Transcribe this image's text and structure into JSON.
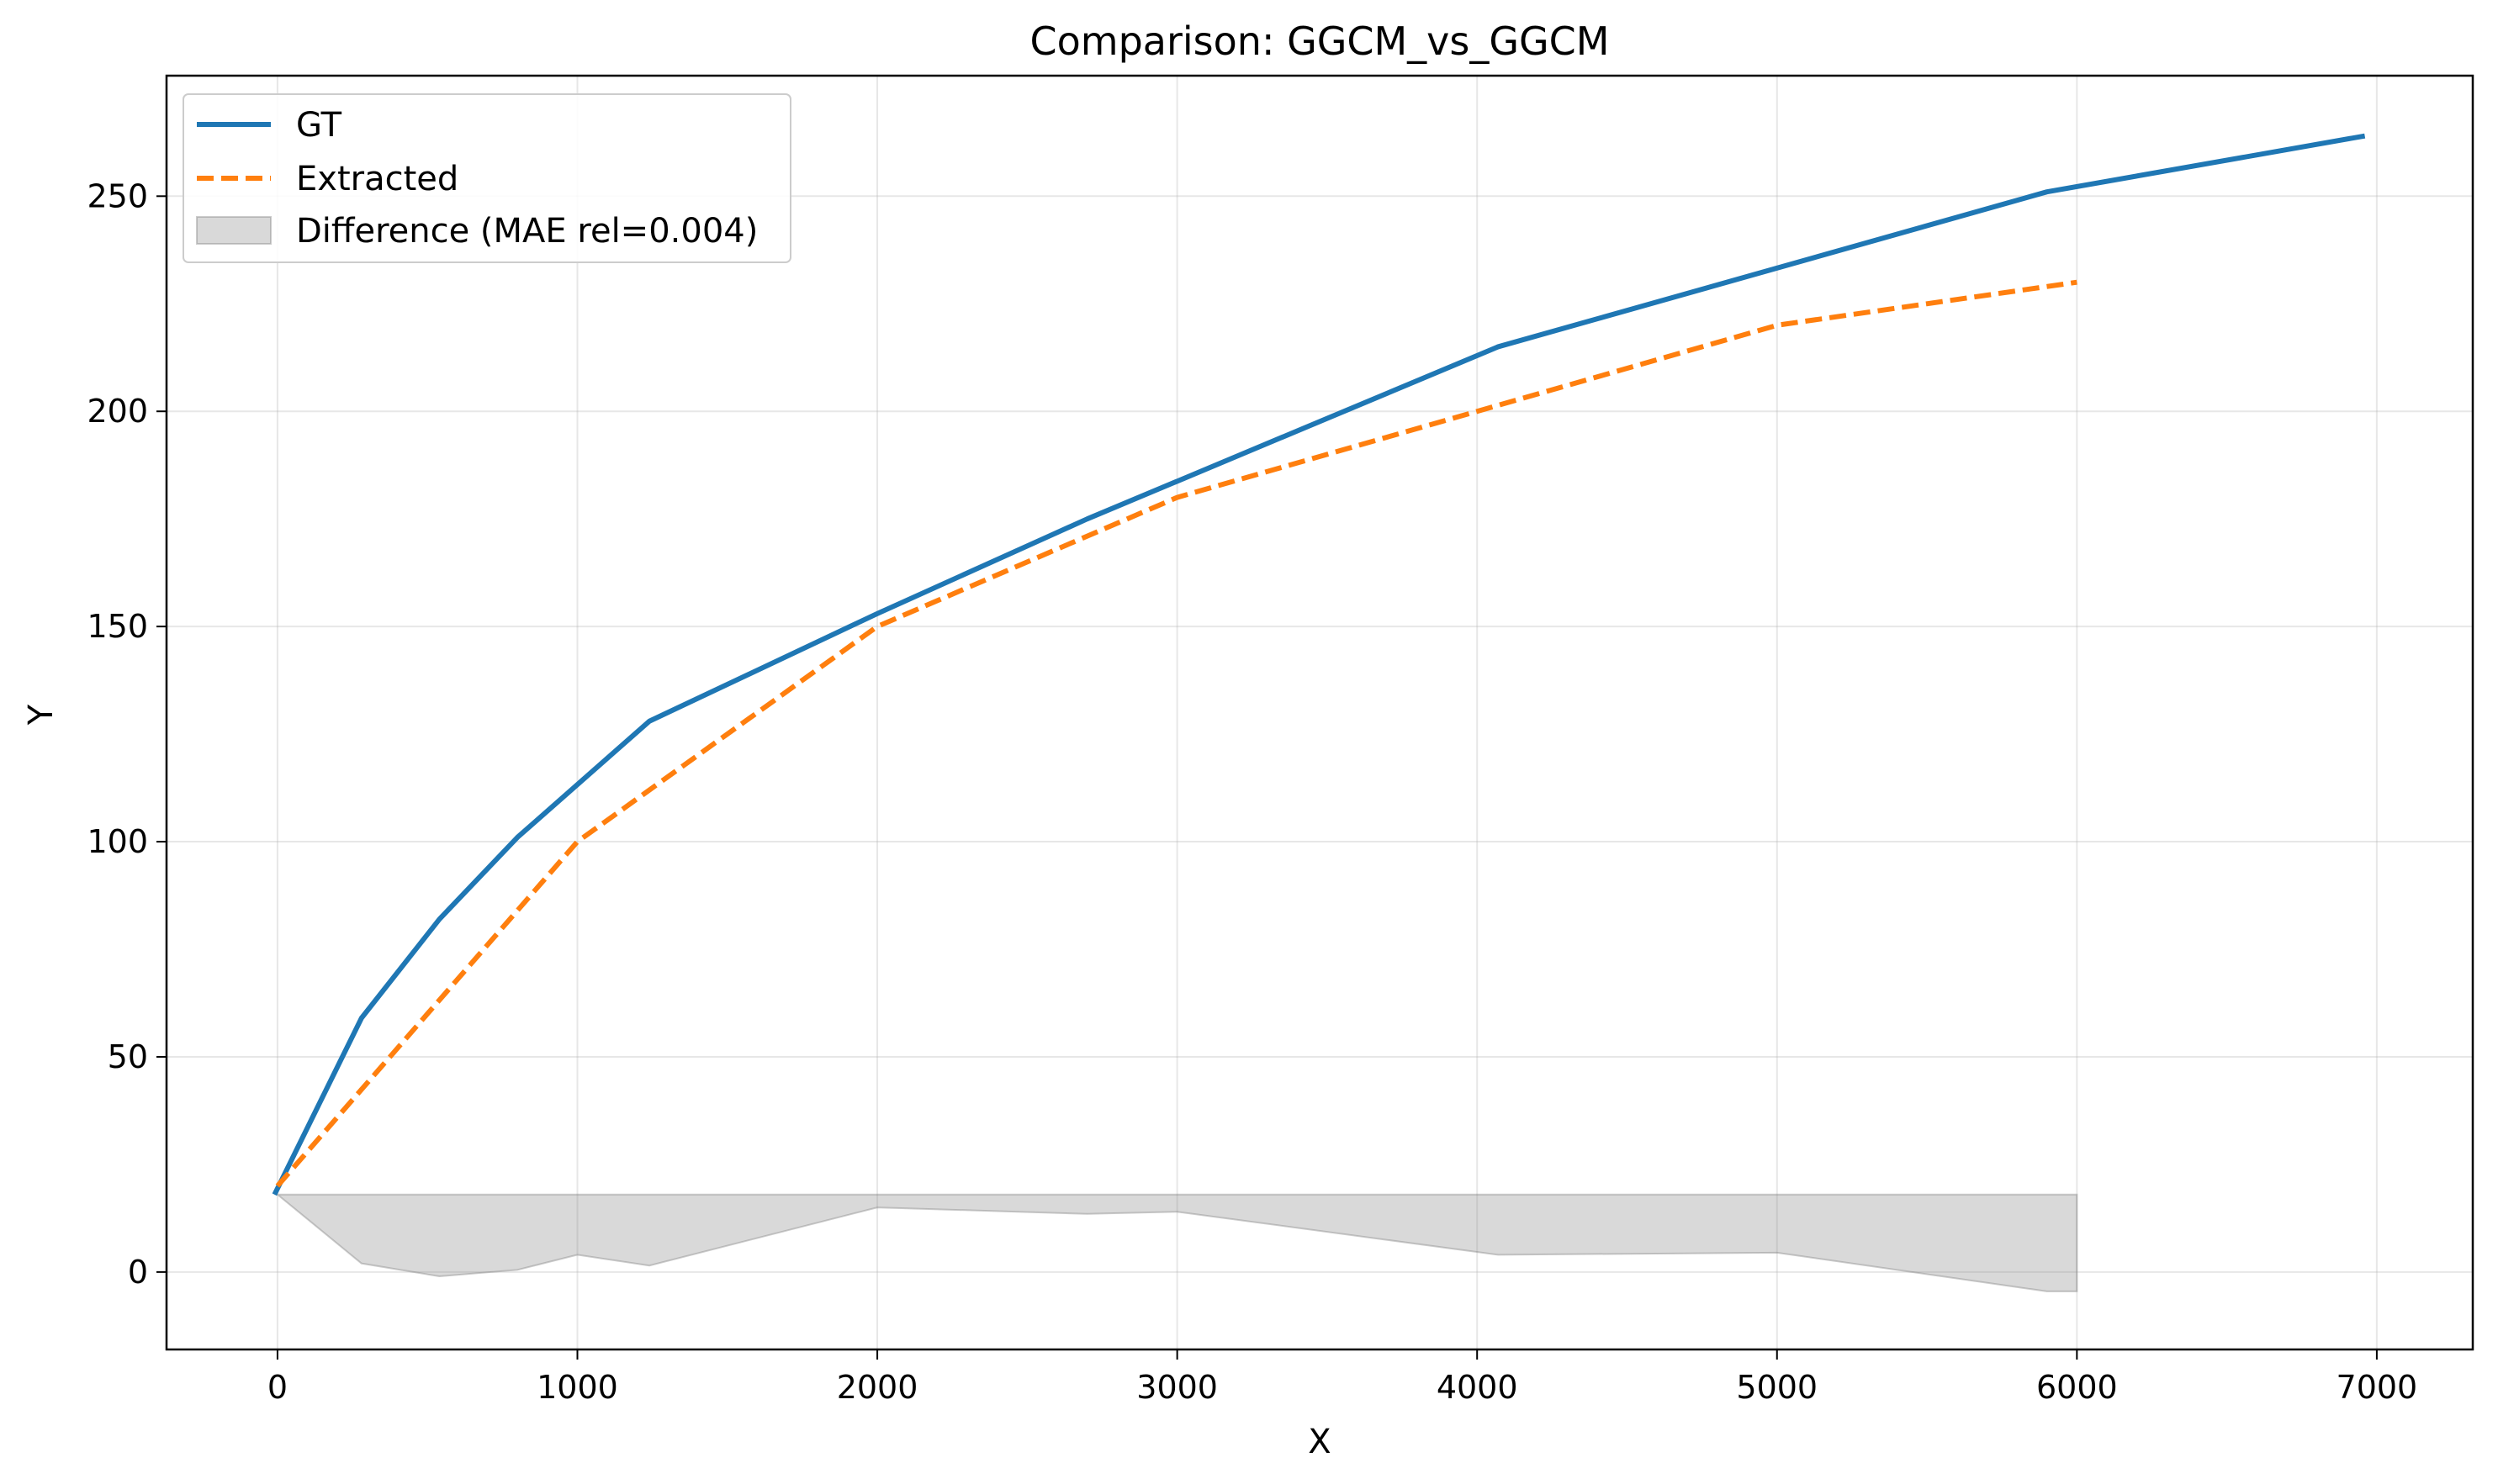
{
  "chart_data": {
    "type": "line",
    "title": "Comparison: GGCM_vs_GGCM",
    "xlabel": "X",
    "ylabel": "Y",
    "xlim": [
      -370,
      7320
    ],
    "ylim": [
      -18,
      278
    ],
    "xticks": [
      0,
      1000,
      2000,
      3000,
      4000,
      5000,
      6000,
      7000
    ],
    "yticks": [
      0,
      50,
      100,
      150,
      200,
      250
    ],
    "grid": true,
    "legend_position": "top-left",
    "series": [
      {
        "name": "GT",
        "style": "solid",
        "color": "#1f77b4",
        "x": [
          -10,
          280,
          540,
          800,
          1240,
          2000,
          2700,
          4070,
          5900,
          6960
        ],
        "y": [
          18,
          59,
          82,
          101,
          128,
          153,
          175,
          215,
          251,
          264
        ]
      },
      {
        "name": "Extracted",
        "style": "dashed",
        "color": "#ff7f0e",
        "x": [
          0,
          500,
          1000,
          2000,
          3000,
          4000,
          5000,
          6000
        ],
        "y": [
          20,
          60,
          100,
          150,
          180,
          200,
          220,
          230
        ]
      }
    ],
    "difference": {
      "name": "Difference (MAE rel=0.004)",
      "color": "#808080",
      "baseline": 18,
      "x": [
        0,
        280,
        540,
        800,
        1000,
        1240,
        2000,
        2700,
        3000,
        4070,
        5000,
        5900,
        6000
      ],
      "y": [
        18,
        2,
        -1,
        0.5,
        4,
        1.5,
        15,
        13.5,
        14,
        4,
        4.5,
        -4.5,
        -4.5
      ]
    }
  }
}
